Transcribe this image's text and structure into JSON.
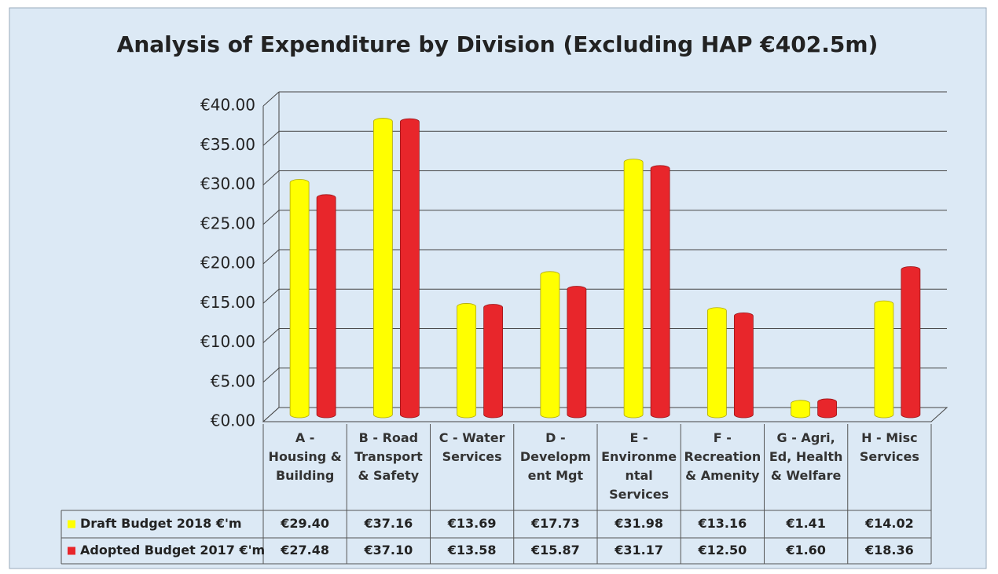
{
  "chart_data": {
    "type": "bar",
    "title": "Analysis of Expenditure by Division (Excluding HAP €402.5m)",
    "categories": [
      "A - Housing & Building",
      "B - Road Transport & Safety",
      "C - Water Services",
      "D - Development Mgt",
      "E - Environmental Services",
      "F - Recreation & Amenity",
      "G - Agri, Ed, Health & Welfare",
      "H - Misc Services"
    ],
    "series": [
      {
        "name": "Draft Budget 2018 €'m",
        "color": "#ffff00",
        "values": [
          29.4,
          37.16,
          13.69,
          17.73,
          31.98,
          13.16,
          1.41,
          14.02
        ],
        "value_labels": [
          "€29.40",
          "€37.16",
          "€13.69",
          "€17.73",
          "€31.98",
          "€13.16",
          "€1.41",
          "€14.02"
        ]
      },
      {
        "name": "Adopted Budget 2017 €'m",
        "color": "#e8262b",
        "values": [
          27.48,
          37.1,
          13.58,
          15.87,
          31.17,
          12.5,
          1.6,
          18.36
        ],
        "value_labels": [
          "€27.48",
          "€37.10",
          "€13.58",
          "€15.87",
          "€31.17",
          "€12.50",
          "€1.60",
          "€18.36"
        ]
      }
    ],
    "ylim": [
      0,
      40
    ],
    "yticks": [
      {
        "value": 0,
        "label": "€0.00"
      },
      {
        "value": 5,
        "label": "€5.00"
      },
      {
        "value": 10,
        "label": "€10.00"
      },
      {
        "value": 15,
        "label": "€15.00"
      },
      {
        "value": 20,
        "label": "€20.00"
      },
      {
        "value": 25,
        "label": "€25.00"
      },
      {
        "value": 30,
        "label": "€30.00"
      },
      {
        "value": 35,
        "label": "€35.00"
      },
      {
        "value": 40,
        "label": "€40.00"
      }
    ],
    "grid": true
  }
}
